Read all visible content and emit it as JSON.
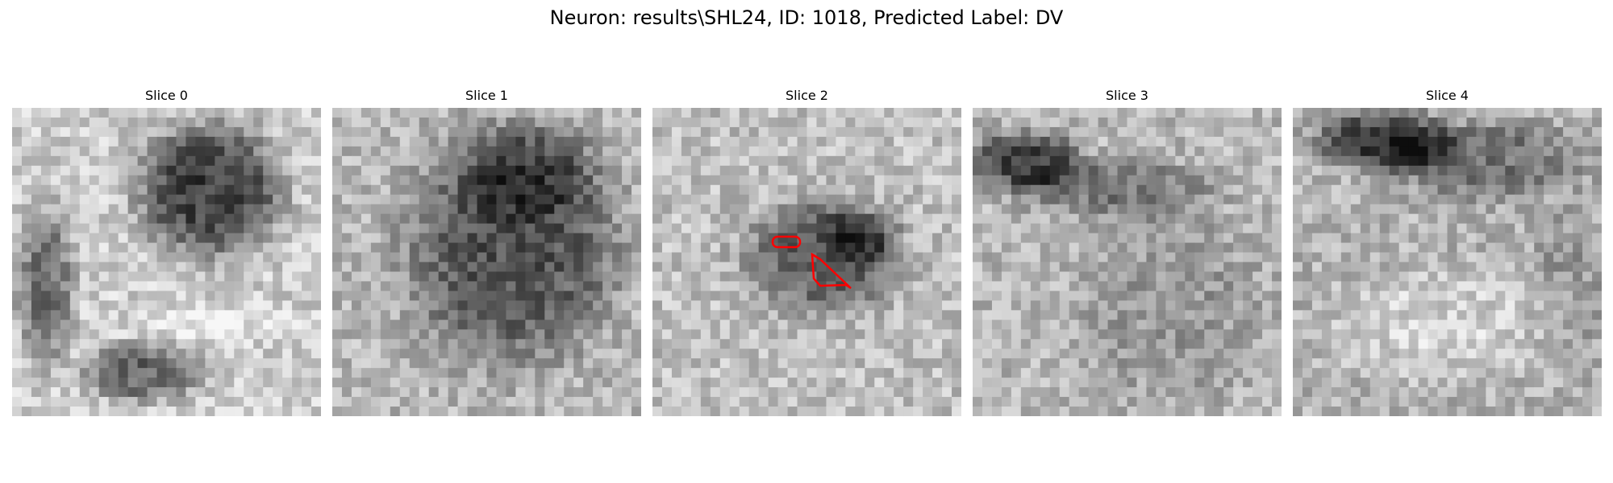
{
  "figure": {
    "title": "Neuron: results\\SHL24, ID: 1018, Predicted Label: DV"
  },
  "panels": [
    {
      "label": "Slice 0"
    },
    {
      "label": "Slice 1"
    },
    {
      "label": "Slice 2"
    },
    {
      "label": "Slice 3"
    },
    {
      "label": "Slice 4"
    }
  ],
  "colors": {
    "annotation": "#ff0000",
    "background": "#ffffff"
  }
}
